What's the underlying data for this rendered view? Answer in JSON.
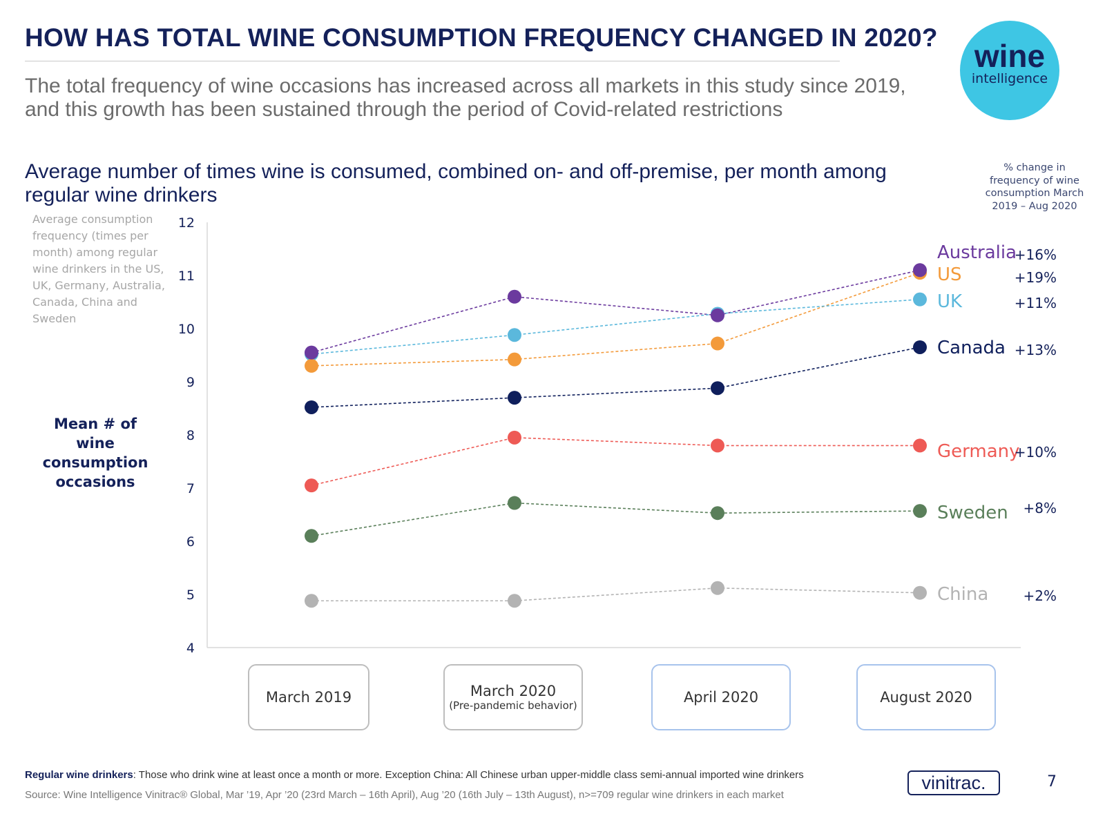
{
  "header": {
    "title": "HOW HAS TOTAL WINE CONSUMPTION FREQUENCY CHANGED IN 2020?",
    "subtitle": "The total frequency of wine occasions has increased across all markets in this study since 2019, and this growth has been sustained through the period of Covid-related restrictions",
    "logo": {
      "word": "wine",
      "sub": "intelligence",
      "color": "#3ec6e4"
    }
  },
  "chart_data": {
    "type": "line",
    "title": "Average number of times wine is consumed, combined on- and off-premise, per month among regular wine drinkers",
    "note": "Average consumption frequency (times per month) among regular wine drinkers in the US, UK, Germany, Australia, Canada, China and Sweden",
    "ylabel": "Mean # of wine consumption occasions",
    "ylim": [
      4,
      12
    ],
    "yticks": [
      "12",
      "11",
      "10",
      "9",
      "8",
      "7",
      "6",
      "5",
      "4"
    ],
    "categories": [
      "March 2019",
      "March 2020",
      "April 2020",
      "August 2020"
    ],
    "category_sub": [
      "",
      "(Pre-pandemic behavior)",
      "",
      ""
    ],
    "pct_header": "% change in frequency of wine consumption March 2019 – Aug 2020",
    "grid": false,
    "series": [
      {
        "name": "Australia",
        "color": "#6b3a9e",
        "values": [
          9.55,
          10.6,
          10.25,
          11.1
        ],
        "change": "+16%"
      },
      {
        "name": "US",
        "color": "#f39a3a",
        "values": [
          9.3,
          9.42,
          9.72,
          11.05
        ],
        "change": "+19%"
      },
      {
        "name": "UK",
        "color": "#5bb8dc",
        "values": [
          9.52,
          9.88,
          10.28,
          10.55
        ],
        "change": "+11%"
      },
      {
        "name": "Canada",
        "color": "#0f1f5c",
        "values": [
          8.52,
          8.7,
          8.88,
          9.65
        ],
        "change": "+13%"
      },
      {
        "name": "Germany",
        "color": "#ee5a55",
        "values": [
          7.05,
          7.95,
          7.8,
          7.8
        ],
        "change": "+10%"
      },
      {
        "name": "Sweden",
        "color": "#5a7f5a",
        "values": [
          6.1,
          6.72,
          6.53,
          6.57
        ],
        "change": "+8%"
      },
      {
        "name": "China",
        "color": "#b3b3b3",
        "values": [
          4.88,
          4.88,
          5.12,
          5.03
        ],
        "change": "+2%"
      }
    ]
  },
  "footer": {
    "definition_label": "Regular wine drinkers",
    "definition_text": ": Those who drink wine at least once a month or more. Exception China: All Chinese urban upper-middle class semi-annual imported wine drinkers",
    "source": "Source: Wine Intelligence Vinitrac® Global, Mar ’19, Apr ’20 (23rd March – 16th April), Aug ’20 (16th July – 13th August), n>=709 regular wine drinkers in each market",
    "brand": "vinitrac.",
    "page": "7"
  }
}
